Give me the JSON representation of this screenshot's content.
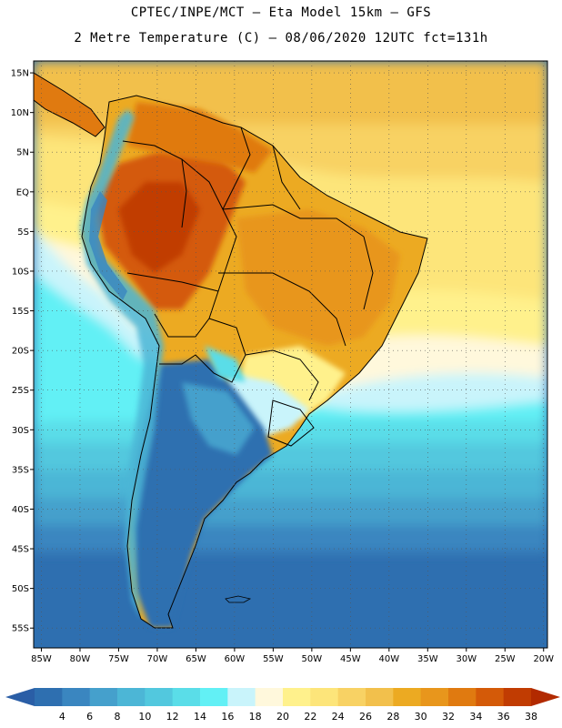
{
  "title_line1": "CPTEC/INPE/MCT –  Eta Model 15km – GFS",
  "title_line2": "2 Metre Temperature (C) – 08/06/2020 12UTC fct=131h",
  "lat_labels": [
    "15N",
    "10N",
    "5N",
    "EQ",
    "5S",
    "10S",
    "15S",
    "20S",
    "25S",
    "30S",
    "35S",
    "40S",
    "45S",
    "50S",
    "55S"
  ],
  "lat_values": [
    15,
    10,
    5,
    0,
    -5,
    -10,
    -15,
    -20,
    -25,
    -30,
    -35,
    -40,
    -45,
    -50,
    -55
  ],
  "lon_labels": [
    "85W",
    "80W",
    "75W",
    "70W",
    "65W",
    "60W",
    "55W",
    "50W",
    "45W",
    "40W",
    "35W",
    "30W",
    "25W",
    "20W"
  ],
  "lon_values": [
    -85,
    -80,
    -75,
    -70,
    -65,
    -60,
    -55,
    -50,
    -45,
    -40,
    -35,
    -30,
    -25,
    -20
  ],
  "colorbar": {
    "labels": [
      "4",
      "6",
      "8",
      "10",
      "12",
      "14",
      "16",
      "18",
      "20",
      "22",
      "24",
      "26",
      "28",
      "30",
      "32",
      "34",
      "36",
      "38"
    ],
    "colors": [
      "#2e6fb0",
      "#3a86c0",
      "#45a0cc",
      "#4cb6d6",
      "#52c8de",
      "#5adde8",
      "#62f0f5",
      "#c9f4fb",
      "#fff8dc",
      "#fff18c",
      "#fde57a",
      "#f8d264",
      "#f2c04c",
      "#ecaa22",
      "#e8961c",
      "#e07a10",
      "#d45a08",
      "#c13c02"
    ],
    "under_color": "#2a5ea6",
    "over_color": "#b22a00"
  },
  "domain": {
    "lon_min": -86,
    "lon_max": -19.5,
    "lat_min": -57.5,
    "lat_max": 16.5
  }
}
